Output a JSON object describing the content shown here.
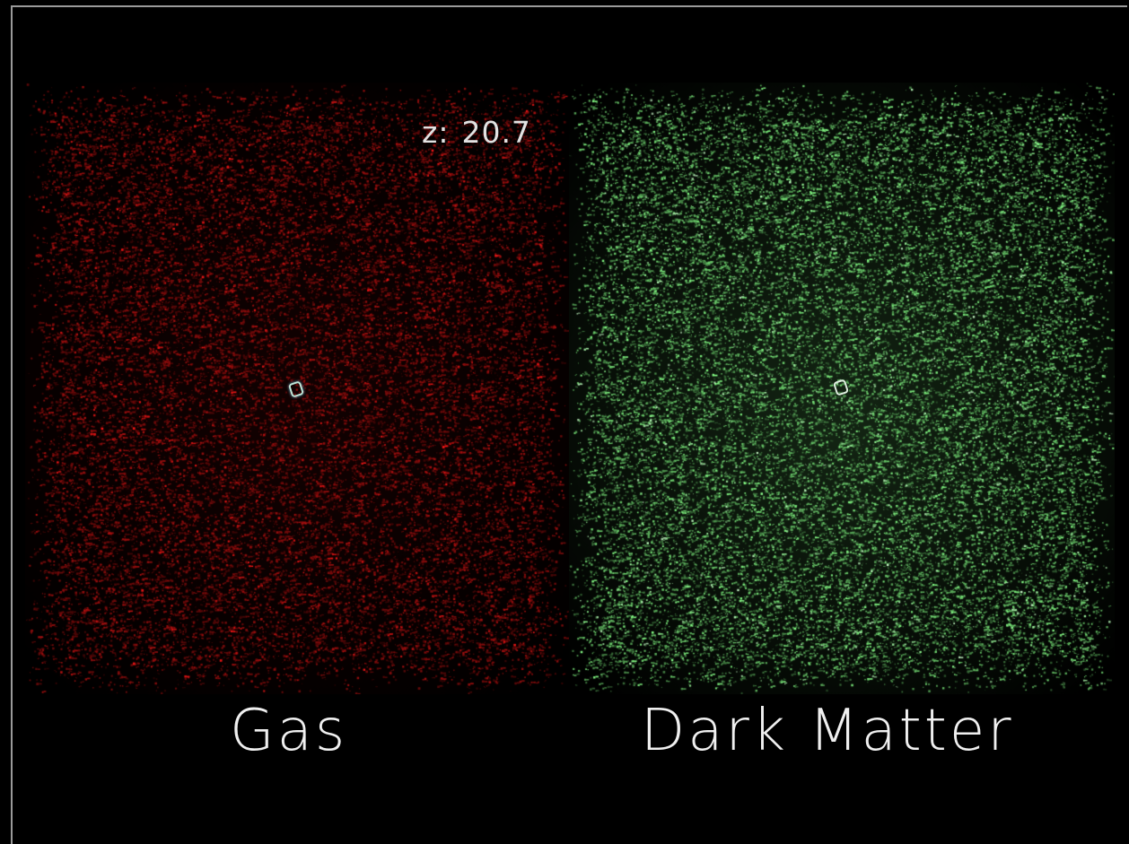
{
  "redshift": {
    "label": "z:",
    "value": "20.7"
  },
  "panels": {
    "gas": {
      "label": "Gas",
      "color": "#b01010"
    },
    "dark_matter": {
      "label": "Dark Matter",
      "color": "#66c266"
    }
  }
}
